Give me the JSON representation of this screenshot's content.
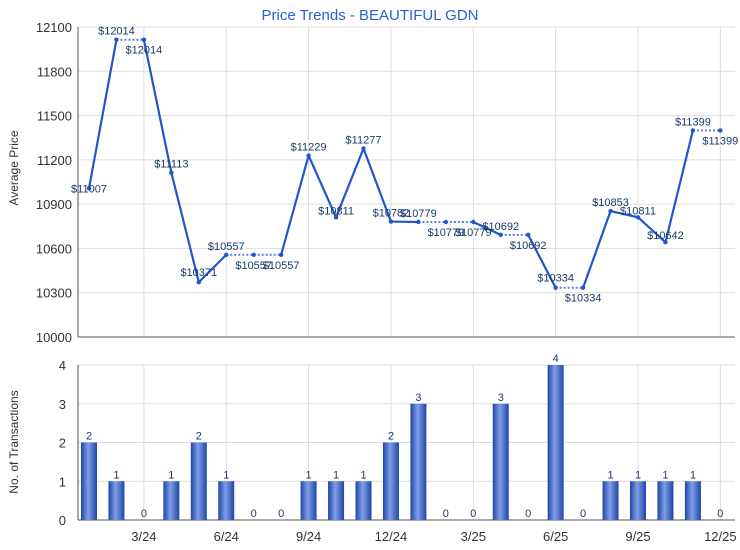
{
  "chart_data": [
    {
      "type": "line",
      "title": "Price Trends - BEAUTIFUL GDN",
      "xlabel": "",
      "ylabel": "Average Price",
      "ylim": [
        10000,
        12100
      ],
      "yticks": [
        10000,
        10300,
        10600,
        10900,
        11200,
        11500,
        11800,
        12100
      ],
      "x": [
        "1/24",
        "2/24",
        "3/24",
        "4/24",
        "5/24",
        "6/24",
        "7/24",
        "8/24",
        "9/24",
        "10/24",
        "11/24",
        "12/24",
        "1/25",
        "2/25",
        "3/25",
        "4/25",
        "5/25",
        "6/25",
        "7/25",
        "8/25",
        "9/25",
        "10/25",
        "11/25",
        "12/25"
      ],
      "values": [
        11007,
        12014,
        12014,
        11113,
        10371,
        10557,
        10557,
        10557,
        11229,
        10811,
        11277,
        10782,
        10779,
        10779,
        10779,
        10692,
        10692,
        10334,
        10334,
        10853,
        10811,
        10642,
        11399,
        11399
      ],
      "data_labels": [
        "$11007",
        "$12014",
        "$12014",
        "$11113",
        "$10371",
        "$10557",
        "$10557",
        "$10557",
        "$11229",
        "$10811",
        "$11277",
        "$10782",
        "$10779",
        "$10779",
        "$10779",
        "$10692",
        "$10692",
        "$10334",
        "$10334",
        "$10853",
        "$10811",
        "$10642",
        "$11399",
        "$11399"
      ],
      "grid": true,
      "note": "dotted segments where month has no transactions"
    },
    {
      "type": "bar",
      "ylabel": "No. of Transactions",
      "ylim": [
        0,
        4
      ],
      "yticks": [
        0,
        1,
        2,
        3,
        4
      ],
      "values": [
        2,
        1,
        0,
        1,
        2,
        1,
        0,
        0,
        1,
        1,
        1,
        2,
        3,
        0,
        0,
        3,
        0,
        4,
        0,
        1,
        1,
        1,
        1,
        0
      ],
      "xtick_labels": [
        "3/24",
        "6/24",
        "9/24",
        "12/24",
        "3/25",
        "6/25",
        "9/25",
        "12/25"
      ],
      "grid": true
    }
  ],
  "colors": {
    "line": "#2255cc",
    "title": "#2a5fd6",
    "label": "#1a3a6a",
    "bar": "#3b63c4"
  }
}
